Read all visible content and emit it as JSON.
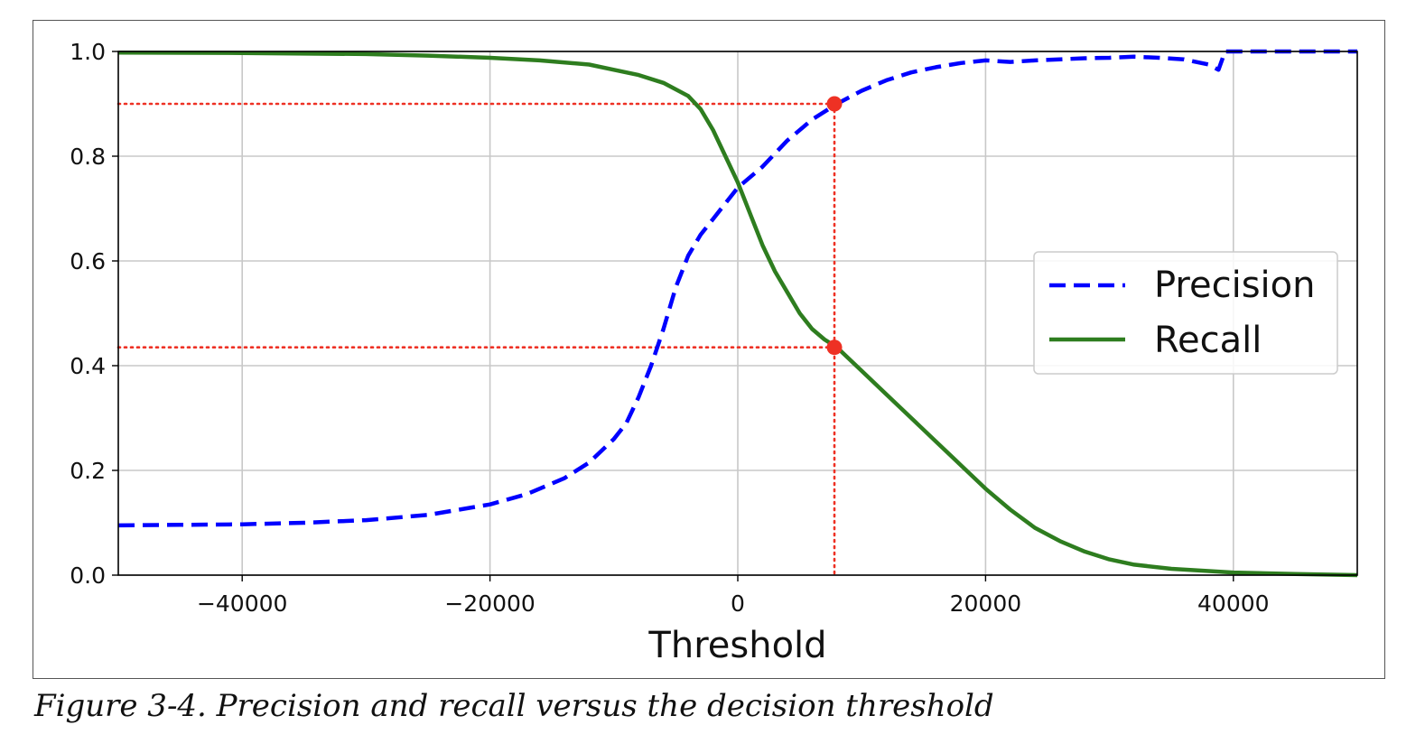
{
  "caption": "Figure 3-4. Precision and recall versus the decision threshold",
  "colors": {
    "precision": "#0000ff",
    "recall": "#2e7d1f",
    "marker": "#ee3124",
    "grid": "#c8c8c8",
    "axes": "#000000"
  },
  "chart_data": {
    "type": "line",
    "title": "",
    "xlabel": "Threshold",
    "ylabel": "",
    "xlim": [
      -50000,
      50000
    ],
    "ylim": [
      0.0,
      1.0
    ],
    "xticks": [
      -40000,
      -20000,
      0,
      20000,
      40000
    ],
    "xtick_labels": [
      "−40000",
      "−20000",
      "0",
      "20000",
      "40000"
    ],
    "yticks": [
      0.0,
      0.2,
      0.4,
      0.6,
      0.8,
      1.0
    ],
    "ytick_labels": [
      "0.0",
      "0.2",
      "0.4",
      "0.6",
      "0.8",
      "1.0"
    ],
    "grid": true,
    "legend_position": "center-right",
    "series": [
      {
        "name": "Precision",
        "style": "dashed",
        "color": "#0000ff",
        "x": [
          -50000,
          -45000,
          -40000,
          -35000,
          -30000,
          -25000,
          -20000,
          -17000,
          -14000,
          -12000,
          -10000,
          -9000,
          -8000,
          -7000,
          -6000,
          -5000,
          -4000,
          -3000,
          -2000,
          -1000,
          0,
          2000,
          4000,
          6000,
          8000,
          10000,
          12000,
          14000,
          16000,
          18000,
          20000,
          22000,
          24000,
          26000,
          28000,
          30000,
          32000,
          34000,
          36000,
          38000,
          38800,
          39100,
          39300,
          40000,
          45000,
          50000
        ],
        "y": [
          0.095,
          0.096,
          0.097,
          0.1,
          0.105,
          0.115,
          0.135,
          0.155,
          0.185,
          0.215,
          0.26,
          0.29,
          0.34,
          0.4,
          0.47,
          0.55,
          0.61,
          0.65,
          0.68,
          0.71,
          0.74,
          0.78,
          0.83,
          0.87,
          0.9,
          0.925,
          0.945,
          0.96,
          0.97,
          0.978,
          0.983,
          0.98,
          0.983,
          0.985,
          0.987,
          0.988,
          0.99,
          0.988,
          0.985,
          0.975,
          0.965,
          0.985,
          1.0,
          1.0,
          1.0,
          1.0
        ]
      },
      {
        "name": "Recall",
        "style": "solid",
        "color": "#2e7d1f",
        "x": [
          -50000,
          -40000,
          -30000,
          -25000,
          -20000,
          -16000,
          -12000,
          -10000,
          -8000,
          -6000,
          -4000,
          -3000,
          -2000,
          -1000,
          0,
          1000,
          2000,
          3000,
          4000,
          5000,
          6000,
          7000,
          8000,
          10000,
          12000,
          14000,
          16000,
          18000,
          20000,
          22000,
          24000,
          26000,
          28000,
          30000,
          32000,
          35000,
          40000,
          45000,
          50000
        ],
        "y": [
          0.998,
          0.997,
          0.995,
          0.992,
          0.988,
          0.983,
          0.975,
          0.965,
          0.955,
          0.94,
          0.915,
          0.89,
          0.85,
          0.8,
          0.75,
          0.69,
          0.63,
          0.58,
          0.54,
          0.5,
          0.47,
          0.45,
          0.435,
          0.39,
          0.345,
          0.3,
          0.255,
          0.21,
          0.165,
          0.125,
          0.09,
          0.065,
          0.045,
          0.03,
          0.02,
          0.012,
          0.005,
          0.002,
          0.0
        ]
      }
    ],
    "annotations": {
      "threshold": 7800,
      "precision_point": 0.9,
      "recall_point": 0.435
    }
  }
}
